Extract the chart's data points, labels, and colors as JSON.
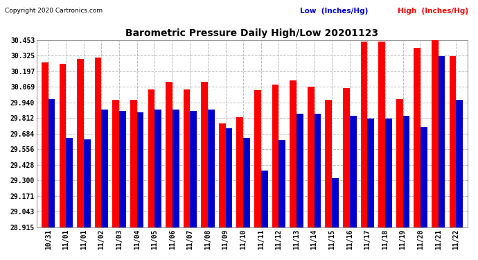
{
  "title": "Barometric Pressure Daily High/Low 20201123",
  "copyright": "Copyright 2020 Cartronics.com",
  "legend_low": "Low  (Inches/Hg)",
  "legend_high": "High  (Inches/Hg)",
  "dates": [
    "10/31",
    "11/01",
    "11/01",
    "11/02",
    "11/03",
    "11/04",
    "11/05",
    "11/06",
    "11/07",
    "11/08",
    "11/09",
    "11/10",
    "11/11",
    "11/12",
    "11/13",
    "11/14",
    "11/15",
    "11/16",
    "11/17",
    "11/18",
    "11/19",
    "11/20",
    "11/21",
    "11/22"
  ],
  "high": [
    30.27,
    30.26,
    30.3,
    30.31,
    29.96,
    29.96,
    30.05,
    30.11,
    30.05,
    30.11,
    29.77,
    29.82,
    30.04,
    30.09,
    30.12,
    30.07,
    29.96,
    30.06,
    30.44,
    30.44,
    29.97,
    30.39,
    30.45,
    30.32
  ],
  "low": [
    29.97,
    29.65,
    29.64,
    29.88,
    29.87,
    29.86,
    29.88,
    29.88,
    29.87,
    29.88,
    29.73,
    29.65,
    29.38,
    29.63,
    29.85,
    29.85,
    29.32,
    29.83,
    29.81,
    29.81,
    29.83,
    29.74,
    30.32,
    29.96
  ],
  "ylim_min": 28.915,
  "ylim_max": 30.453,
  "yticks": [
    28.915,
    29.043,
    29.171,
    29.3,
    29.428,
    29.556,
    29.684,
    29.812,
    29.94,
    30.069,
    30.197,
    30.325,
    30.453
  ],
  "bar_width": 0.38,
  "high_color": "#ff0000",
  "low_color": "#0000cc",
  "bg_color": "#ffffff",
  "grid_color": "#bbbbbb",
  "title_color": "#000000",
  "copyright_color": "#000000",
  "legend_low_color": "#0000cc",
  "legend_high_color": "#ff0000"
}
